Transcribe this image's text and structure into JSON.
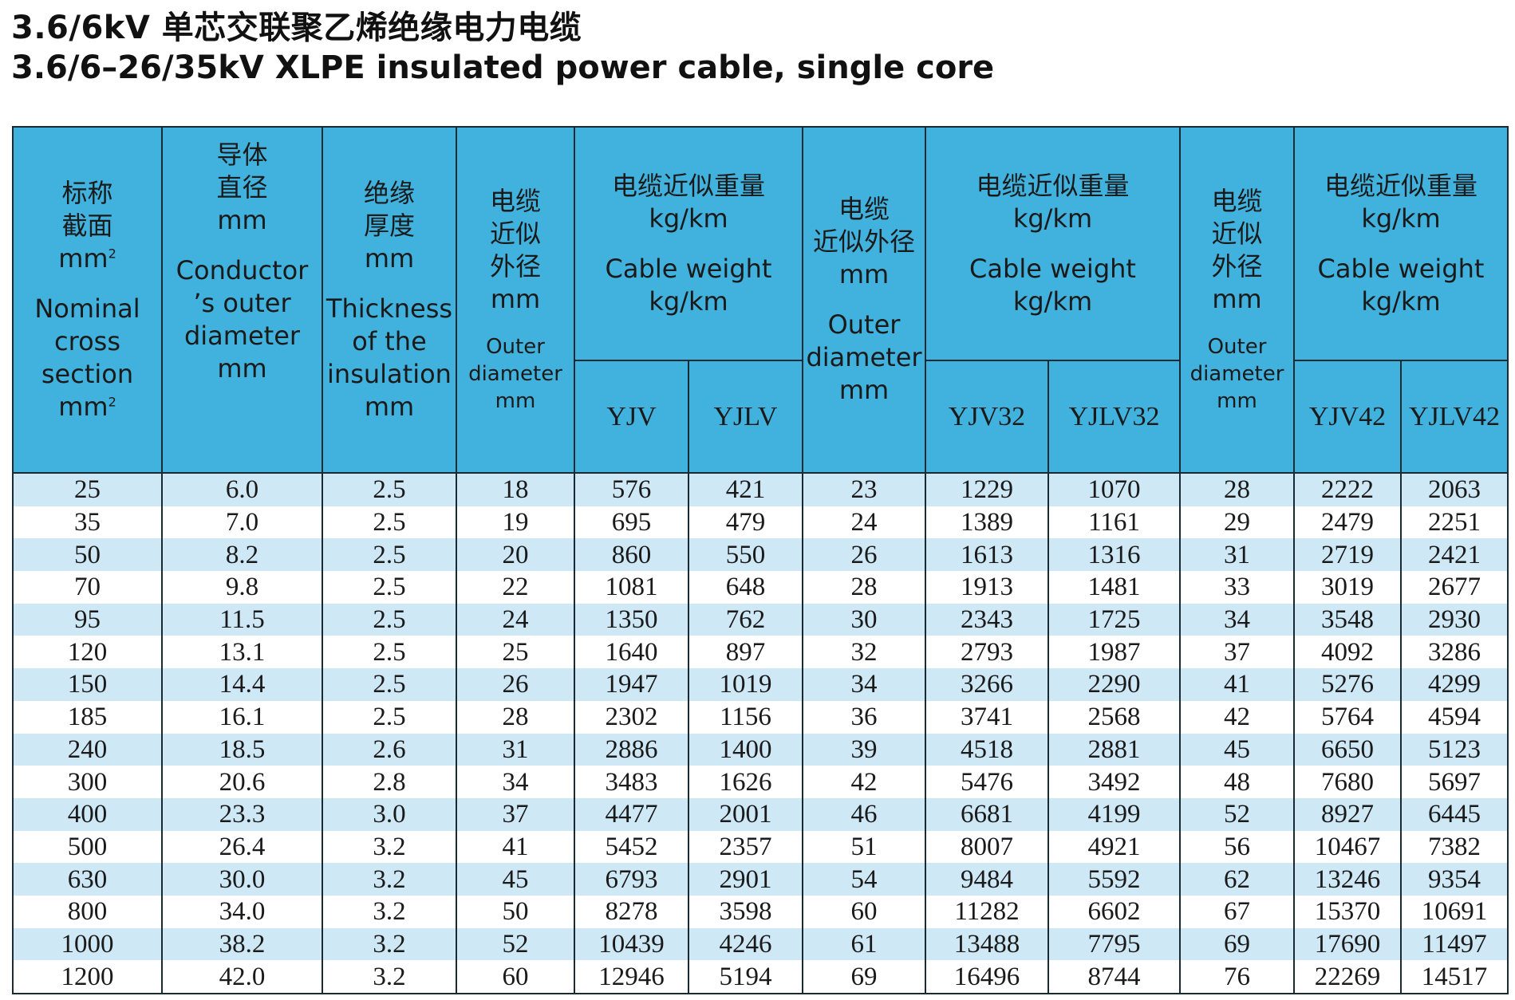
{
  "title_cn": "3.6/6kV 单芯交联聚乙烯绝缘电力电缆",
  "title_en": "3.6/6–26/35kV XLPE insulated power cable, single core",
  "headers": {
    "section": {
      "cn1": "标称",
      "cn2": "截面",
      "unit_cn": "mm",
      "en1": "Nominal",
      "en2": "cross",
      "en3": "section",
      "unit_en": "mm"
    },
    "conductor": {
      "cn1": "导体",
      "cn2": "直径",
      "unit_cn": "mm",
      "en1": "Conductor",
      "en2": "’s outer",
      "en3": "diameter",
      "unit_en": "mm"
    },
    "insulation": {
      "cn1": "绝缘",
      "cn2": "厚度",
      "unit_cn": "mm",
      "en1": "Thickness",
      "en2": "of the",
      "en3": "insulation",
      "unit_en": "mm"
    },
    "od1": {
      "cn1": "电缆",
      "cn2": "近似",
      "cn3": "外径",
      "unit_cn": "mm",
      "en1": "Outer",
      "en2": "diameter",
      "unit_en": "mm"
    },
    "weight1": {
      "cn": "电缆近似重量",
      "unit_cn": "kg/km",
      "en": "Cable weight",
      "unit_en": "kg/km"
    },
    "od2": {
      "cn1": "电缆",
      "cn2": "近似外径",
      "unit_cn": "mm",
      "en1": "Outer",
      "en2": "diameter",
      "unit_en": "mm"
    },
    "weight2": {
      "cn": "电缆近似重量",
      "unit_cn": "kg/km",
      "en": "Cable weight",
      "unit_en": "kg/km"
    },
    "od3": {
      "cn1": "电缆",
      "cn2": "近似",
      "cn3": "外径",
      "unit_cn": "mm",
      "en1": "Outer",
      "en2": "diameter",
      "unit_en": "mm"
    },
    "weight3": {
      "cn": "电缆近似重量",
      "unit_cn": "kg/km",
      "en": "Cable weight",
      "unit_en": "kg/km"
    },
    "models": [
      "YJV",
      "YJLV",
      "YJV32",
      "YJLV32",
      "YJV42",
      "YJLV42"
    ]
  },
  "rows": [
    [
      "25",
      "6.0",
      "2.5",
      "18",
      "576",
      "421",
      "23",
      "1229",
      "1070",
      "28",
      "2222",
      "2063"
    ],
    [
      "35",
      "7.0",
      "2.5",
      "19",
      "695",
      "479",
      "24",
      "1389",
      "1161",
      "29",
      "2479",
      "2251"
    ],
    [
      "50",
      "8.2",
      "2.5",
      "20",
      "860",
      "550",
      "26",
      "1613",
      "1316",
      "31",
      "2719",
      "2421"
    ],
    [
      "70",
      "9.8",
      "2.5",
      "22",
      "1081",
      "648",
      "28",
      "1913",
      "1481",
      "33",
      "3019",
      "2677"
    ],
    [
      "95",
      "11.5",
      "2.5",
      "24",
      "1350",
      "762",
      "30",
      "2343",
      "1725",
      "34",
      "3548",
      "2930"
    ],
    [
      "120",
      "13.1",
      "2.5",
      "25",
      "1640",
      "897",
      "32",
      "2793",
      "1987",
      "37",
      "4092",
      "3286"
    ],
    [
      "150",
      "14.4",
      "2.5",
      "26",
      "1947",
      "1019",
      "34",
      "3266",
      "2290",
      "41",
      "5276",
      "4299"
    ],
    [
      "185",
      "16.1",
      "2.5",
      "28",
      "2302",
      "1156",
      "36",
      "3741",
      "2568",
      "42",
      "5764",
      "4594"
    ],
    [
      "240",
      "18.5",
      "2.6",
      "31",
      "2886",
      "1400",
      "39",
      "4518",
      "2881",
      "45",
      "6650",
      "5123"
    ],
    [
      "300",
      "20.6",
      "2.8",
      "34",
      "3483",
      "1626",
      "42",
      "5476",
      "3492",
      "48",
      "7680",
      "5697"
    ],
    [
      "400",
      "23.3",
      "3.0",
      "37",
      "4477",
      "2001",
      "46",
      "6681",
      "4199",
      "52",
      "8927",
      "6445"
    ],
    [
      "500",
      "26.4",
      "3.2",
      "41",
      "5452",
      "2357",
      "51",
      "8007",
      "4921",
      "56",
      "10467",
      "7382"
    ],
    [
      "630",
      "30.0",
      "3.2",
      "45",
      "6793",
      "2901",
      "54",
      "9484",
      "5592",
      "62",
      "13246",
      "9354"
    ],
    [
      "800",
      "34.0",
      "3.2",
      "50",
      "8278",
      "3598",
      "60",
      "11282",
      "6602",
      "67",
      "15370",
      "10691"
    ],
    [
      "1000",
      "38.2",
      "3.2",
      "52",
      "10439",
      "4246",
      "61",
      "13488",
      "7795",
      "69",
      "17690",
      "11497"
    ],
    [
      "1200",
      "42.0",
      "3.2",
      "60",
      "12946",
      "5194",
      "69",
      "16496",
      "8744",
      "76",
      "22269",
      "14517"
    ]
  ]
}
